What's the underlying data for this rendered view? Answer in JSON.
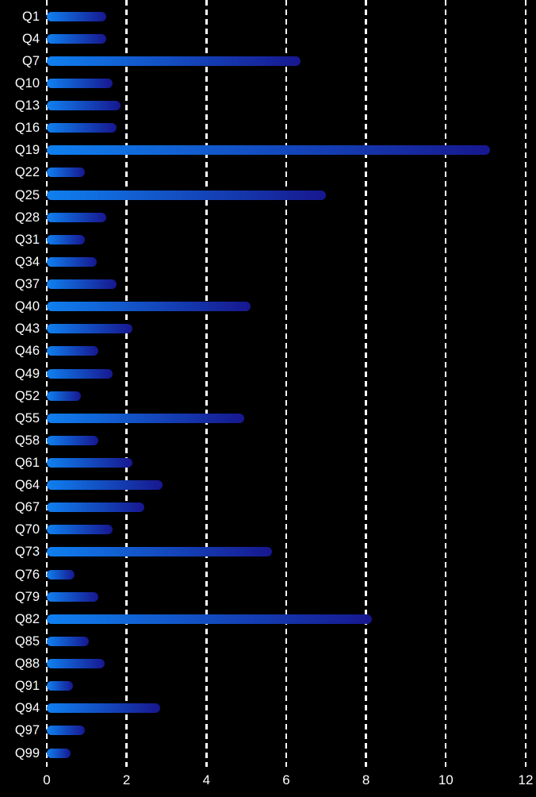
{
  "chart_data": {
    "type": "bar",
    "orientation": "horizontal",
    "title": "",
    "xlabel": "",
    "ylabel": "",
    "categories": [
      "Q1",
      "Q4",
      "Q7",
      "Q10",
      "Q13",
      "Q16",
      "Q19",
      "Q22",
      "Q25",
      "Q28",
      "Q31",
      "Q34",
      "Q37",
      "Q40",
      "Q43",
      "Q46",
      "Q49",
      "Q52",
      "Q55",
      "Q58",
      "Q61",
      "Q64",
      "Q67",
      "Q70",
      "Q73",
      "Q76",
      "Q79",
      "Q82",
      "Q85",
      "Q88",
      "Q91",
      "Q94",
      "Q97",
      "Q99"
    ],
    "values": [
      1.5,
      1.5,
      6.35,
      1.65,
      1.85,
      1.75,
      11.1,
      0.95,
      7.0,
      1.5,
      0.95,
      1.25,
      1.75,
      5.1,
      2.15,
      1.3,
      1.65,
      0.85,
      4.95,
      1.3,
      2.15,
      2.9,
      2.45,
      1.65,
      5.65,
      0.7,
      1.3,
      8.15,
      1.05,
      1.45,
      0.65,
      2.85,
      0.95,
      0.6
    ],
    "xlim": [
      0,
      12
    ],
    "x_ticks": [
      0,
      2,
      4,
      6,
      8,
      10,
      12
    ],
    "grid": "dashed-vertical-white",
    "legend": "none",
    "colors": {
      "background": "#000000",
      "bar_gradient_start": "#0f80f0",
      "bar_gradient_end": "#17178f",
      "gridline": "#ffffff",
      "tick_label": "#ffffff"
    }
  }
}
